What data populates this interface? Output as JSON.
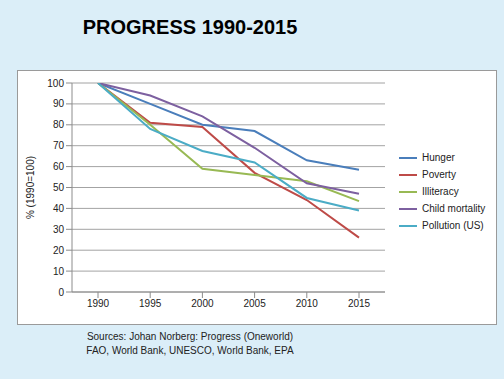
{
  "chart_data": {
    "type": "line",
    "title": "PROGRESS 1990-2015",
    "y_label": "% (1990=100)",
    "annotations": [
      "Sources: Johan Norberg: Progress (Oneworld)",
      "FAO, World Bank, UNESCO, World Bank, EPA"
    ],
    "categories": [
      "1990",
      "1995",
      "2000",
      "2005",
      "2010",
      "2015"
    ],
    "series": [
      {
        "name": "Hunger",
        "color": "#4a7ebb",
        "values": [
          100,
          90,
          80,
          77,
          63,
          58.5
        ]
      },
      {
        "name": "Poverty",
        "color": "#be4b48",
        "values": [
          100,
          81,
          79,
          57,
          44,
          26
        ]
      },
      {
        "name": "Illiteracy",
        "color": "#98b954",
        "values": [
          100,
          80,
          59,
          56,
          53,
          43.5
        ]
      },
      {
        "name": "Child mortality",
        "color": "#7d60a0",
        "values": [
          100,
          94,
          84,
          69,
          52,
          47
        ]
      },
      {
        "name": "Pollution (US)",
        "color": "#4bacc6",
        "values": [
          100,
          78,
          67.5,
          62,
          45,
          39
        ]
      }
    ],
    "ylim": [
      0,
      100
    ],
    "yticks": [
      0,
      10,
      20,
      30,
      40,
      50,
      60,
      70,
      80,
      90,
      100
    ],
    "grid": true,
    "legend": "right"
  }
}
